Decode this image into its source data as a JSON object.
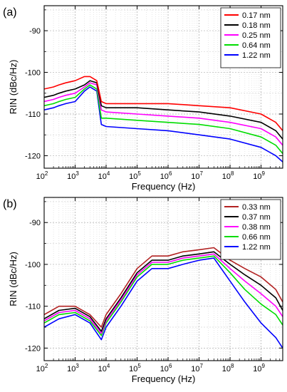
{
  "chart_data": [
    {
      "type": "line",
      "panel_label": "(a)",
      "xlabel": "Frequency (Hz)",
      "ylabel": "RIN (dBc/Hz)",
      "xscale": "log",
      "xlim": [
        100,
        5000000000
      ],
      "ylim": [
        -123,
        -84
      ],
      "x_ticks": [
        {
          "exp": "2"
        },
        {
          "exp": "3"
        },
        {
          "exp": "4"
        },
        {
          "exp": "5"
        },
        {
          "exp": "6"
        },
        {
          "exp": "7"
        },
        {
          "exp": "8"
        },
        {
          "exp": "9"
        }
      ],
      "y_ticks": [
        "-90",
        "-100",
        "-110",
        "-120"
      ],
      "grid": true,
      "legend_position": "top-right",
      "series": [
        {
          "name": "0.17 nm",
          "color": "#ff0000",
          "x": [
            100,
            200,
            300,
            500,
            1000,
            2000,
            3000,
            5000,
            7000,
            10000,
            100000,
            1000000,
            10000000,
            100000000,
            1000000000,
            3000000000,
            5000000000
          ],
          "y": [
            -104,
            -103.5,
            -103,
            -102.5,
            -102,
            -101,
            -101,
            -102,
            -107,
            -107.5,
            -107.5,
            -107.5,
            -108,
            -108.5,
            -110,
            -112,
            -114
          ]
        },
        {
          "name": "0.18 nm",
          "color": "#000000",
          "x": [
            100,
            200,
            300,
            500,
            1000,
            2000,
            3000,
            5000,
            7000,
            10000,
            100000,
            1000000,
            10000000,
            100000000,
            1000000000,
            3000000000,
            5000000000
          ],
          "y": [
            -106,
            -105.5,
            -105,
            -104.5,
            -104,
            -103,
            -102,
            -102.5,
            -108,
            -108.5,
            -108.5,
            -109,
            -109.5,
            -110.5,
            -112,
            -114,
            -116
          ]
        },
        {
          "name": "0.25 nm",
          "color": "#ff00ff",
          "x": [
            100,
            200,
            300,
            500,
            1000,
            2000,
            3000,
            5000,
            7000,
            10000,
            100000,
            1000000,
            10000000,
            100000000,
            1000000000,
            3000000000,
            5000000000
          ],
          "y": [
            -107,
            -106.5,
            -106,
            -105.5,
            -105,
            -103.5,
            -102.5,
            -103,
            -109,
            -109.5,
            -110,
            -110.5,
            -111,
            -112,
            -113.5,
            -115.5,
            -117.5
          ]
        },
        {
          "name": "0.64 nm",
          "color": "#00dd00",
          "x": [
            100,
            200,
            300,
            500,
            1000,
            2000,
            3000,
            5000,
            7000,
            10000,
            100000,
            1000000,
            10000000,
            100000000,
            1000000000,
            3000000000,
            5000000000
          ],
          "y": [
            -108,
            -107.5,
            -107,
            -106.5,
            -106,
            -104,
            -103,
            -104,
            -111,
            -111,
            -111.5,
            -112,
            -112.5,
            -113.5,
            -115.5,
            -117.5,
            -119.5
          ]
        },
        {
          "name": "1.22 nm",
          "color": "#0000ff",
          "x": [
            100,
            200,
            300,
            500,
            1000,
            2000,
            3000,
            5000,
            7000,
            10000,
            100000,
            1000000,
            10000000,
            100000000,
            1000000000,
            3000000000,
            5000000000
          ],
          "y": [
            -109,
            -108.5,
            -108,
            -107.5,
            -107,
            -104.5,
            -103.5,
            -104.5,
            -112.5,
            -113,
            -113.5,
            -114,
            -115,
            -116,
            -118,
            -120,
            -121.5
          ]
        }
      ]
    },
    {
      "type": "line",
      "panel_label": "(b)",
      "xlabel": "Frequency (Hz)",
      "ylabel": "RIN (dBc/Hz)",
      "xscale": "log",
      "xlim": [
        100,
        5000000000
      ],
      "ylim": [
        -123,
        -84
      ],
      "x_ticks": [
        {
          "exp": "2"
        },
        {
          "exp": "3"
        },
        {
          "exp": "4"
        },
        {
          "exp": "5"
        },
        {
          "exp": "6"
        },
        {
          "exp": "7"
        },
        {
          "exp": "8"
        },
        {
          "exp": "9"
        }
      ],
      "y_ticks": [
        "-90",
        "-100",
        "-110",
        "-120"
      ],
      "grid": true,
      "legend_position": "top-right",
      "series": [
        {
          "name": "0.33 nm",
          "color": "#b22222",
          "x": [
            100,
            300,
            1000,
            3000,
            7000,
            10000,
            30000,
            100000,
            300000,
            1000000,
            3000000,
            10000000,
            30000000,
            100000000,
            300000000,
            1000000000,
            3000000000,
            5000000000
          ],
          "y": [
            -112,
            -110,
            -110,
            -112,
            -115,
            -112,
            -107,
            -101,
            -98,
            -98,
            -97,
            -96.5,
            -96,
            -99,
            -101,
            -103,
            -106,
            -109
          ]
        },
        {
          "name": "0.37 nm",
          "color": "#000000",
          "x": [
            100,
            300,
            1000,
            3000,
            7000,
            10000,
            30000,
            100000,
            300000,
            1000000,
            3000000,
            10000000,
            30000000,
            100000000,
            300000000,
            1000000000,
            3000000000,
            5000000000
          ],
          "y": [
            -113,
            -111,
            -110.5,
            -112.5,
            -116,
            -113,
            -108,
            -102,
            -99,
            -99,
            -98,
            -97.5,
            -97,
            -100,
            -102.5,
            -105,
            -108,
            -111
          ]
        },
        {
          "name": "0.38 nm",
          "color": "#ff00ff",
          "x": [
            100,
            300,
            1000,
            3000,
            7000,
            10000,
            30000,
            100000,
            300000,
            1000000,
            3000000,
            10000000,
            30000000,
            100000000,
            300000000,
            1000000000,
            3000000000,
            5000000000
          ],
          "y": [
            -113.5,
            -111.5,
            -111,
            -113,
            -116.5,
            -113.5,
            -108.5,
            -102.5,
            -99.5,
            -99.5,
            -98.5,
            -98,
            -97.5,
            -101,
            -104,
            -107,
            -110,
            -112.5
          ]
        },
        {
          "name": "0.66 nm",
          "color": "#00dd00",
          "x": [
            100,
            300,
            1000,
            3000,
            7000,
            10000,
            30000,
            100000,
            300000,
            1000000,
            3000000,
            10000000,
            30000000,
            100000000,
            300000000,
            1000000000,
            3000000000,
            5000000000
          ],
          "y": [
            -114,
            -112,
            -111.5,
            -113.5,
            -117,
            -114,
            -109,
            -103,
            -100,
            -100,
            -99,
            -98.5,
            -98,
            -102,
            -106,
            -109.5,
            -112,
            -114.5
          ]
        },
        {
          "name": "1.22 nm",
          "color": "#0000ff",
          "x": [
            100,
            300,
            1000,
            3000,
            7000,
            10000,
            30000,
            100000,
            300000,
            1000000,
            3000000,
            10000000,
            30000000,
            100000000,
            300000000,
            1000000000,
            3000000000,
            5000000000
          ],
          "y": [
            -115,
            -113,
            -112,
            -114,
            -118,
            -115,
            -110,
            -104,
            -101,
            -101,
            -100,
            -99,
            -98.5,
            -104,
            -109,
            -114,
            -117.5,
            -120
          ]
        }
      ]
    }
  ]
}
